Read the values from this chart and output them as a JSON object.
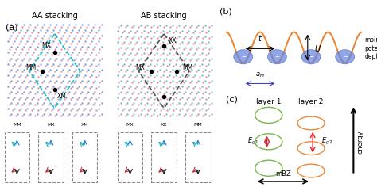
{
  "bg_color": "#f0f0f0",
  "panel_a_label": "(a)",
  "panel_b_label": "(b)",
  "panel_c_label": "(c)",
  "aa_stacking_label": "AA stacking",
  "ab_stacking_label": "AB stacking",
  "aa_sites": [
    "MM",
    "MX",
    "XM"
  ],
  "ab_sites": [
    "MX",
    "XX",
    "MM"
  ],
  "layer1_label": "layer 1",
  "layer2_label": "layer 2",
  "mBZ_label": "mBZ",
  "Eg1_label": "$E_{g1}$",
  "Eg2_label": "$E_{g2}$",
  "energy_label": "energy",
  "t_label": "$t$",
  "U_label": "$U$",
  "aM_label": "$a_M$",
  "moire_label": "moiré\npotential\ndepth",
  "green_color": "#7ab648",
  "orange_color": "#e8883a",
  "red_color": "#e0202a",
  "cyan_color": "#40c0c0",
  "pink_color": "#e06060",
  "dark_color": "#333333"
}
